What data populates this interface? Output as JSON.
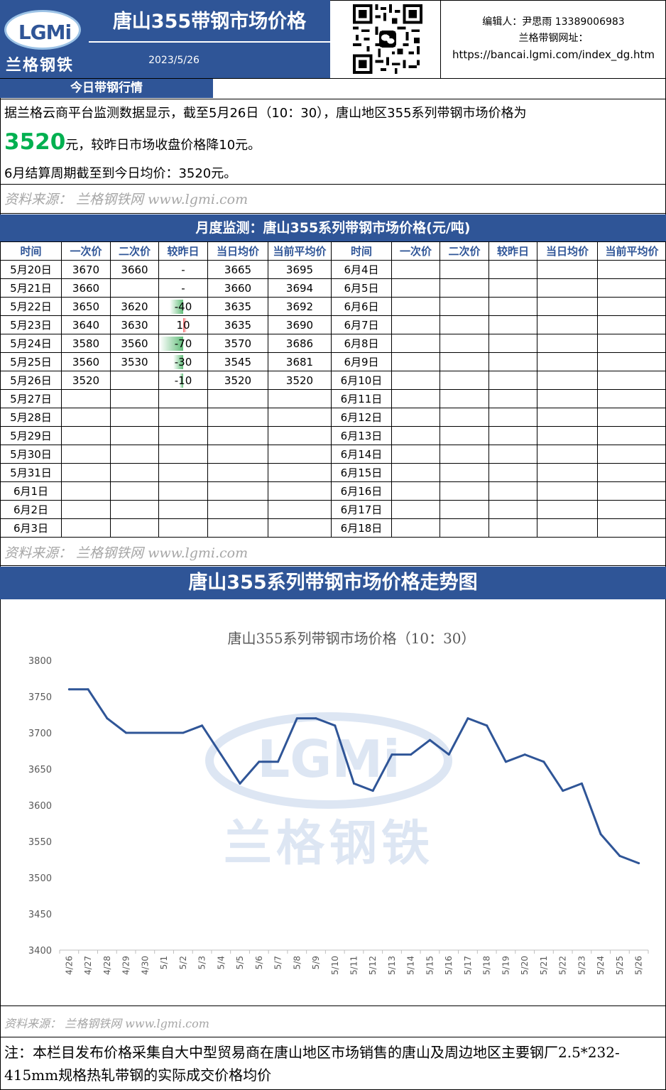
{
  "header": {
    "logo_text": "LGMi",
    "logo_cn": "兰格钢铁",
    "title": "唐山355带钢市场价格",
    "date": "2023/5/26",
    "editor": "编辑人：尹思雨 13389006983",
    "site_label": "兰格带钢网址：",
    "site_url": "https://bancai.lgmi.com/index_dg.htm"
  },
  "today": {
    "section_title": "今日带钢行情",
    "line1": "据兰格云商平台监测数据显示，截至5月26日（10：30），唐山地区355系列带钢市场价格为",
    "price": "3520",
    "line2_suffix": "元，较昨日市场收盘价格降10元。",
    "line3": "6月结算周期截至到今日均价：3520元。",
    "source": "资料来源： 兰格钢铁网 www.lgmi.com"
  },
  "monthly": {
    "section_title": "月度监测：唐山355系列带钢市场价格(元/吨)",
    "headers": [
      "时间",
      "一次价",
      "二次价",
      "较昨日",
      "当日均价",
      "当前平均价",
      "时间",
      "一次价",
      "二次价",
      "较昨日",
      "当日均价",
      "当前平均价"
    ],
    "rows": [
      [
        "5月20日",
        "3670",
        "3660",
        "-",
        "3665",
        "3695",
        "6月4日"
      ],
      [
        "5月21日",
        "3660",
        "",
        "-",
        "3660",
        "3694",
        "6月5日"
      ],
      [
        "5月22日",
        "3650",
        "3620",
        "-40",
        "3635",
        "3692",
        "6月6日"
      ],
      [
        "5月23日",
        "3640",
        "3630",
        "10",
        "3635",
        "3690",
        "6月7日"
      ],
      [
        "5月24日",
        "3580",
        "3560",
        "-70",
        "3570",
        "3686",
        "6月8日"
      ],
      [
        "5月25日",
        "3560",
        "3530",
        "-30",
        "3545",
        "3681",
        "6月9日"
      ],
      [
        "5月26日",
        "3520",
        "",
        "-10",
        "3520",
        "3520",
        "6月10日"
      ],
      [
        "5月27日",
        "",
        "",
        "",
        "",
        "",
        "6月11日"
      ],
      [
        "5月28日",
        "",
        "",
        "",
        "",
        "",
        "6月12日"
      ],
      [
        "5月29日",
        "",
        "",
        "",
        "",
        "",
        "6月13日"
      ],
      [
        "5月30日",
        "",
        "",
        "",
        "",
        "",
        "6月14日"
      ],
      [
        "5月31日",
        "",
        "",
        "",
        "",
        "",
        "6月15日"
      ],
      [
        "6月1日",
        "",
        "",
        "",
        "",
        "",
        "6月16日"
      ],
      [
        "6月2日",
        "",
        "",
        "",
        "",
        "",
        "6月17日"
      ],
      [
        "6月3日",
        "",
        "",
        "",
        "",
        "",
        "6月18日"
      ]
    ],
    "source": "资料来源： 兰格钢铁网 www.lgmi.com"
  },
  "trend": {
    "section_title": "唐山355系列带钢市场价格走势图",
    "source": "资料来源： 兰格钢铁网 www.lgmi.com",
    "watermark_text": "LGMi",
    "watermark_cn": "兰格钢铁"
  },
  "chart_data": {
    "type": "line",
    "title": "唐山355系列带钢市场价格（10：30）",
    "x": [
      "4/26",
      "4/27",
      "4/28",
      "4/29",
      "4/30",
      "5/1",
      "5/2",
      "5/3",
      "5/4",
      "5/5",
      "5/6",
      "5/7",
      "5/8",
      "5/9",
      "5/10",
      "5/11",
      "5/12",
      "5/13",
      "5/14",
      "5/15",
      "5/16",
      "5/17",
      "5/18",
      "5/19",
      "5/20",
      "5/21",
      "5/22",
      "5/23",
      "5/24",
      "5/25",
      "5/26"
    ],
    "series": [
      {
        "values": [
          3760,
          3760,
          3720,
          3700,
          3700,
          3700,
          3700,
          3710,
          3670,
          3630,
          3660,
          3660,
          3720,
          3720,
          3710,
          3630,
          3620,
          3670,
          3670,
          3690,
          3670,
          3720,
          3710,
          3660,
          3670,
          3660,
          3620,
          3630,
          3560,
          3530,
          3520
        ]
      }
    ],
    "ylim": [
      3400,
      3800
    ],
    "yticks": [
      3400,
      3450,
      3500,
      3550,
      3600,
      3650,
      3700,
      3750,
      3800
    ],
    "color": "#2F5597",
    "grid": false
  },
  "footnote": "注：本栏目发布价格采集自大中型贸易商在唐山地区市场销售的唐山及周边地区主要钢厂2.5*232-415mm规格热轧带钢的实际成交价格均价"
}
